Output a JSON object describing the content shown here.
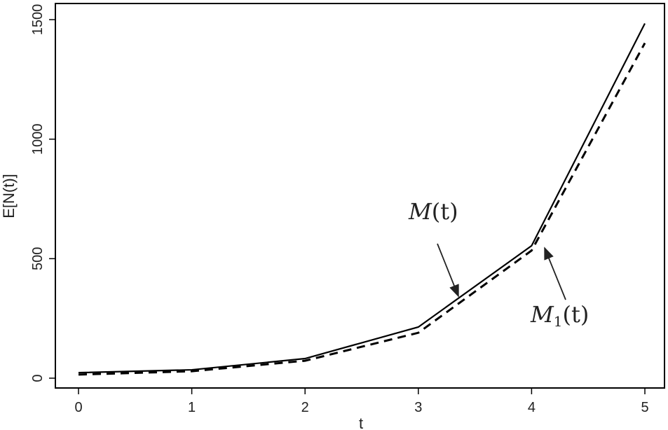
{
  "chart_data": {
    "type": "line",
    "title": "",
    "xlabel": "t",
    "ylabel": "E[N(t)]",
    "x": [
      0,
      1,
      2,
      3,
      4,
      5
    ],
    "xlim": [
      -0.2,
      5.2
    ],
    "ylim": [
      -40,
      1570
    ],
    "xticks": [
      "0",
      "1",
      "2",
      "3",
      "4",
      "5"
    ],
    "yticks": [
      "0",
      "500",
      "1000",
      "1500"
    ],
    "grid": false,
    "series": [
      {
        "name": "M(t)",
        "style": "solid",
        "color": "#000000",
        "values": [
          23,
          35,
          82,
          214,
          554,
          1484
        ]
      },
      {
        "name": "M1(t)",
        "style": "dashed",
        "color": "#000000",
        "values": [
          15,
          29,
          73,
          190,
          534,
          1402
        ]
      }
    ],
    "annotations": [
      {
        "label": "M",
        "sub": "",
        "arg": "(t)"
      },
      {
        "label": "M",
        "sub": "1",
        "arg": "(t)"
      }
    ]
  }
}
